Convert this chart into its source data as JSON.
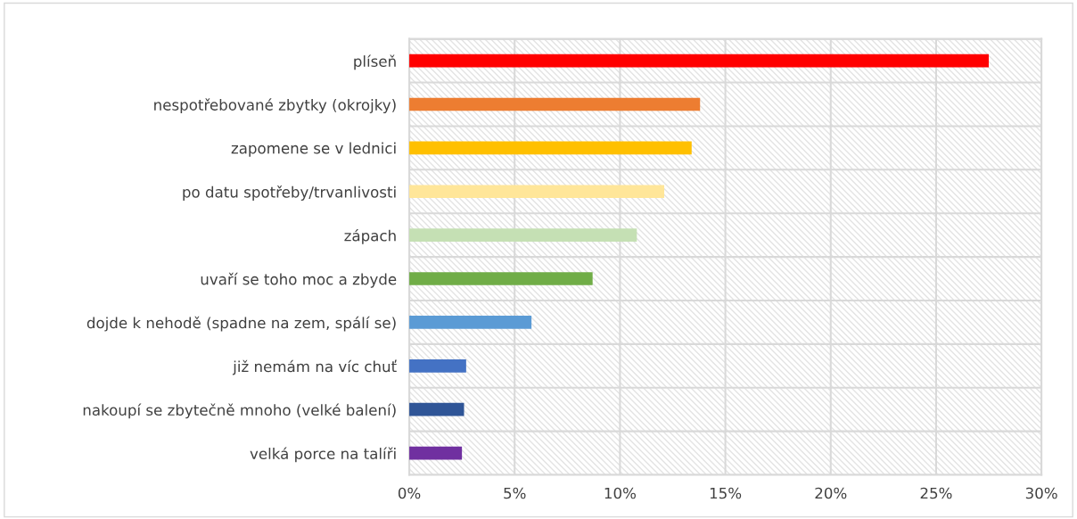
{
  "chart_data": {
    "type": "bar",
    "orientation": "horizontal",
    "categories": [
      "plíseň",
      "nespotřebované zbytky (okrojky)",
      "zapomene se v lednici",
      "po datu spotřeby/trvanlivosti",
      "zápach",
      "uvaří se toho moc a zbyde",
      "dojde k nehodě (spadne na zem, spálí se)",
      "již nemám na víc chuť",
      "nakoupí se zbytečně mnoho (velké balení)",
      "velká porce na talíři"
    ],
    "values": [
      27.5,
      13.8,
      13.4,
      12.1,
      10.8,
      8.7,
      5.8,
      2.7,
      2.6,
      2.5
    ],
    "colors": [
      "#ff0000",
      "#ed7d31",
      "#ffc000",
      "#ffe699",
      "#c5e0b4",
      "#70ad47",
      "#5b9bd5",
      "#4472c4",
      "#2f5597",
      "#7030a0"
    ],
    "xlim": [
      0,
      30
    ],
    "xticks": [
      {
        "value": 0,
        "label": "0%"
      },
      {
        "value": 5,
        "label": "5%"
      },
      {
        "value": 10,
        "label": "10%"
      },
      {
        "value": 15,
        "label": "15%"
      },
      {
        "value": 20,
        "label": "20%"
      },
      {
        "value": 25,
        "label": "25%"
      },
      {
        "value": 30,
        "label": "30%"
      }
    ],
    "grid": true,
    "legend": false
  }
}
